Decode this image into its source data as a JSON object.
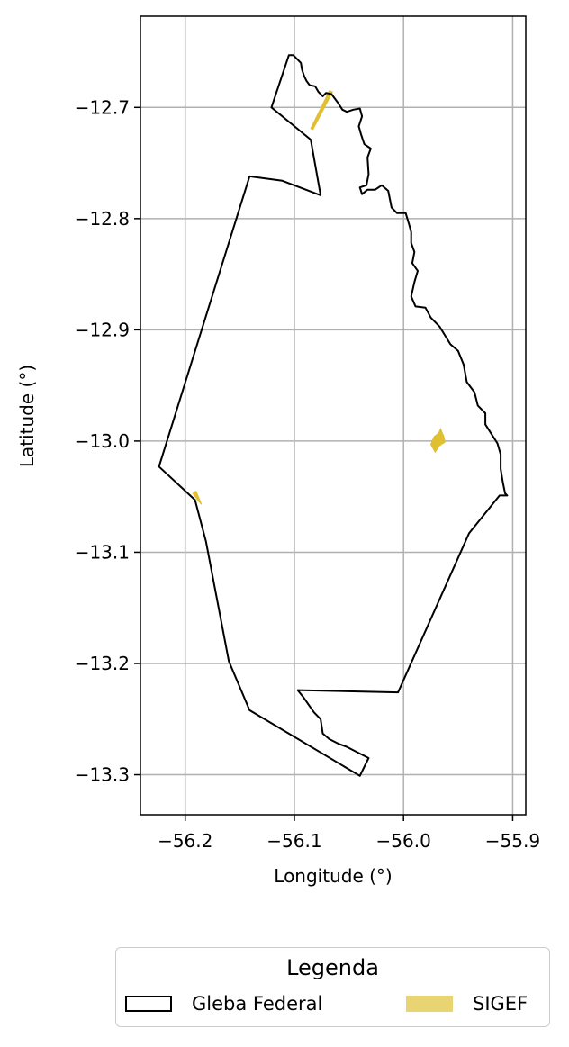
{
  "chart_data": {
    "type": "map",
    "xlabel": "Longitude (°)",
    "ylabel": "Latitude (°)",
    "xlim": [
      -56.241,
      -55.888
    ],
    "ylim": [
      -13.336,
      -12.618
    ],
    "xticks": [
      -56.2,
      -56.1,
      -56.0,
      -55.9
    ],
    "xtick_labels": [
      "−56.2",
      "−56.1",
      "−56.0",
      "−55.9"
    ],
    "yticks": [
      -12.7,
      -12.8,
      -12.9,
      -13.0,
      -13.1,
      -13.2,
      -13.3
    ],
    "ytick_labels": [
      "−12.7",
      "−12.8",
      "−12.9",
      "−13.0",
      "−13.1",
      "−13.2",
      "−13.3"
    ],
    "grid": true,
    "colors": {
      "gleba_edge": "#000000",
      "sigef_fill": "#e0c030",
      "grid": "#b0b0b0"
    },
    "gleba_federal": [
      [
        -56.105,
        -12.653
      ],
      [
        -56.101,
        -12.653
      ],
      [
        -56.097,
        -12.657
      ],
      [
        -56.094,
        -12.66
      ],
      [
        -56.093,
        -12.666
      ],
      [
        -56.091,
        -12.672
      ],
      [
        -56.089,
        -12.676
      ],
      [
        -56.086,
        -12.68
      ],
      [
        -56.081,
        -12.681
      ],
      [
        -56.078,
        -12.686
      ],
      [
        -56.074,
        -12.69
      ],
      [
        -56.071,
        -12.687
      ],
      [
        -56.066,
        -12.688
      ],
      [
        -56.063,
        -12.692
      ],
      [
        -56.06,
        -12.696
      ],
      [
        -56.056,
        -12.702
      ],
      [
        -56.052,
        -12.704
      ],
      [
        -56.046,
        -12.702
      ],
      [
        -56.04,
        -12.701
      ],
      [
        -56.038,
        -12.708
      ],
      [
        -56.041,
        -12.717
      ],
      [
        -56.039,
        -12.724
      ],
      [
        -56.036,
        -12.733
      ],
      [
        -56.03,
        -12.737
      ],
      [
        -56.033,
        -12.745
      ],
      [
        -56.032,
        -12.76
      ],
      [
        -56.034,
        -12.77
      ],
      [
        -56.04,
        -12.772
      ],
      [
        -56.038,
        -12.778
      ],
      [
        -56.033,
        -12.774
      ],
      [
        -56.026,
        -12.774
      ],
      [
        -56.02,
        -12.77
      ],
      [
        -56.014,
        -12.775
      ],
      [
        -56.011,
        -12.79
      ],
      [
        -56.006,
        -12.795
      ],
      [
        -55.998,
        -12.795
      ],
      [
        -55.995,
        -12.805
      ],
      [
        -55.993,
        -12.812
      ],
      [
        -55.993,
        -12.822
      ],
      [
        -55.99,
        -12.83
      ],
      [
        -55.992,
        -12.84
      ],
      [
        -55.987,
        -12.847
      ],
      [
        -55.99,
        -12.857
      ],
      [
        -55.993,
        -12.87
      ],
      [
        -55.989,
        -12.879
      ],
      [
        -55.98,
        -12.88
      ],
      [
        -55.975,
        -12.889
      ],
      [
        -55.967,
        -12.897
      ],
      [
        -55.962,
        -12.905
      ],
      [
        -55.957,
        -12.913
      ],
      [
        -55.95,
        -12.919
      ],
      [
        -55.945,
        -12.931
      ],
      [
        -55.942,
        -12.947
      ],
      [
        -55.935,
        -12.956
      ],
      [
        -55.932,
        -12.968
      ],
      [
        -55.925,
        -12.975
      ],
      [
        -55.925,
        -12.985
      ],
      [
        -55.914,
        -13.002
      ],
      [
        -55.911,
        -13.012
      ],
      [
        -55.911,
        -13.025
      ],
      [
        -55.909,
        -13.037
      ],
      [
        -55.907,
        -13.047
      ],
      [
        -55.905,
        -13.049
      ],
      [
        -55.912,
        -13.049
      ],
      [
        -55.94,
        -13.083
      ],
      [
        -56.005,
        -13.226
      ],
      [
        -56.097,
        -13.224
      ],
      [
        -56.092,
        -13.23
      ],
      [
        -56.087,
        -13.237
      ],
      [
        -56.082,
        -13.244
      ],
      [
        -56.076,
        -13.25
      ],
      [
        -56.074,
        -13.263
      ],
      [
        -56.068,
        -13.268
      ],
      [
        -56.06,
        -13.272
      ],
      [
        -56.052,
        -13.275
      ],
      [
        -56.032,
        -13.285
      ],
      [
        -56.04,
        -13.301
      ],
      [
        -56.141,
        -13.242
      ],
      [
        -56.16,
        -13.198
      ],
      [
        -56.181,
        -13.09
      ],
      [
        -56.191,
        -13.053
      ],
      [
        -56.224,
        -13.023
      ],
      [
        -56.141,
        -12.762
      ],
      [
        -56.111,
        -12.766
      ],
      [
        -56.076,
        -12.779
      ],
      [
        -56.085,
        -12.729
      ],
      [
        -56.121,
        -12.7
      ],
      [
        -56.105,
        -12.653
      ]
    ],
    "sigef_parcels": [
      [
        [
          -56.068,
          -12.685
        ],
        [
          -56.065,
          -12.686
        ],
        [
          -56.083,
          -12.72
        ],
        [
          -56.085,
          -12.719
        ]
      ],
      [
        [
          -55.975,
          -13.003
        ],
        [
          -55.972,
          -12.996
        ],
        [
          -55.968,
          -12.993
        ],
        [
          -55.966,
          -12.989
        ],
        [
          -55.963,
          -12.996
        ],
        [
          -55.962,
          -13.001
        ],
        [
          -55.967,
          -13.004
        ],
        [
          -55.971,
          -13.01
        ]
      ],
      [
        [
          -56.193,
          -13.047
        ],
        [
          -56.188,
          -13.054
        ],
        [
          -56.185,
          -13.057
        ],
        [
          -56.19,
          -13.045
        ]
      ]
    ],
    "legend": {
      "title": "Legenda",
      "placement": "bottom-center",
      "entries": [
        "Gleba Federal",
        "SIGEF"
      ]
    }
  }
}
